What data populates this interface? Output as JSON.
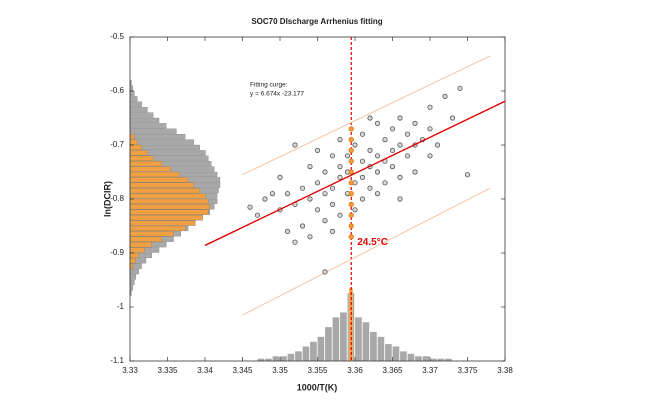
{
  "chart_data": {
    "type": "scatter",
    "title": "SOC70 DIscharge Arrhenius fitting",
    "xlabel": "1000/T(K)",
    "ylabel": "ln(DCIR)",
    "annotations": [
      "Fitting curge:",
      "y = 6.674x -23.177"
    ],
    "marker_label": "24.5°C",
    "xlim": [
      3.33,
      3.38
    ],
    "ylim": [
      -1.1,
      -0.5
    ],
    "xticks": [
      3.33,
      3.335,
      3.34,
      3.345,
      3.35,
      3.355,
      3.36,
      3.365,
      3.37,
      3.375,
      3.38
    ],
    "yticks": [
      -1.1,
      -1,
      -0.9,
      -0.8,
      -0.7,
      -0.6,
      -0.5
    ],
    "vline": {
      "x": 3.3595,
      "color": "#e00000"
    },
    "series": [
      {
        "type": "line",
        "color": "#f5c4a4",
        "x": [
          3.345,
          3.378
        ],
        "values": [
          -0.755,
          -0.535
        ]
      },
      {
        "type": "line",
        "color": "#f5c4a4",
        "x": [
          3.345,
          3.378
        ],
        "values": [
          -1.015,
          -0.78
        ]
      },
      {
        "type": "scatter",
        "color": "#808080",
        "x": [
          3.346,
          3.347,
          3.348,
          3.349,
          3.35,
          3.35,
          3.351,
          3.351,
          3.352,
          3.352,
          3.353,
          3.353,
          3.354,
          3.354,
          3.354,
          3.355,
          3.355,
          3.355,
          3.356,
          3.356,
          3.356,
          3.357,
          3.357,
          3.357,
          3.357,
          3.358,
          3.358,
          3.358,
          3.358,
          3.359,
          3.359,
          3.359,
          3.36,
          3.36,
          3.36,
          3.361,
          3.361,
          3.361,
          3.361,
          3.362,
          3.362,
          3.362,
          3.363,
          3.363,
          3.363,
          3.363,
          3.364,
          3.364,
          3.364,
          3.365,
          3.365,
          3.365,
          3.366,
          3.366,
          3.366,
          3.367,
          3.367,
          3.368,
          3.368,
          3.368,
          3.369,
          3.37,
          3.37,
          3.371,
          3.372,
          3.373,
          3.374,
          3.375,
          3.356,
          3.352,
          3.37,
          3.362,
          3.366
        ],
        "values": [
          -0.815,
          -0.83,
          -0.8,
          -0.79,
          -0.82,
          -0.76,
          -0.86,
          -0.79,
          -0.88,
          -0.81,
          -0.78,
          -0.85,
          -0.8,
          -0.74,
          -0.87,
          -0.77,
          -0.82,
          -0.71,
          -0.79,
          -0.84,
          -0.75,
          -0.72,
          -0.78,
          -0.86,
          -0.81,
          -0.74,
          -0.76,
          -0.83,
          -0.69,
          -0.72,
          -0.79,
          -0.75,
          -0.7,
          -0.77,
          -0.82,
          -0.73,
          -0.68,
          -0.76,
          -0.8,
          -0.71,
          -0.74,
          -0.78,
          -0.66,
          -0.72,
          -0.75,
          -0.79,
          -0.69,
          -0.73,
          -0.77,
          -0.67,
          -0.71,
          -0.74,
          -0.65,
          -0.7,
          -0.76,
          -0.68,
          -0.72,
          -0.66,
          -0.7,
          -0.75,
          -0.69,
          -0.72,
          -0.67,
          -0.7,
          -0.61,
          -0.65,
          -0.595,
          -0.755,
          -0.935,
          -0.7,
          -0.63,
          -0.65,
          -0.8
        ]
      },
      {
        "type": "scatter",
        "color": "#f0a040",
        "x": [
          3.3595,
          3.3595,
          3.3595,
          3.3595,
          3.3595,
          3.3595,
          3.3595,
          3.3595,
          3.3595,
          3.3595,
          3.3595
        ],
        "values": [
          -0.67,
          -0.69,
          -0.71,
          -0.73,
          -0.75,
          -0.77,
          -0.79,
          -0.81,
          -0.83,
          -0.85,
          -0.87
        ]
      },
      {
        "type": "line",
        "color": "#e00000",
        "x": [
          3.34,
          3.38
        ],
        "values": [
          -0.886,
          -0.619
        ]
      }
    ],
    "x_hist": [
      {
        "color": "#a8a8a8",
        "bins": [
          3.347,
          3.348,
          3.349,
          3.35,
          3.351,
          3.352,
          3.353,
          3.354,
          3.355,
          3.356,
          3.357,
          3.358,
          3.359,
          3.36,
          3.361,
          3.362,
          3.363,
          3.364,
          3.365,
          3.366,
          3.367,
          3.368,
          3.369,
          3.37,
          3.371,
          3.372,
          3.373
        ],
        "counts": [
          1,
          1,
          2,
          2,
          3,
          4,
          6,
          8,
          10,
          14,
          18,
          20,
          28,
          18,
          16,
          12,
          10,
          7,
          6,
          4,
          3,
          2,
          2,
          1,
          1,
          1
        ]
      },
      {
        "color": "#f0a040",
        "bins": [
          3.3592,
          3.3598
        ],
        "counts": [
          30
        ]
      }
    ],
    "y_hist": [
      {
        "color": "#a8a8a8",
        "bins": [
          -0.98,
          -0.97,
          -0.96,
          -0.95,
          -0.94,
          -0.93,
          -0.92,
          -0.91,
          -0.9,
          -0.89,
          -0.88,
          -0.87,
          -0.86,
          -0.85,
          -0.84,
          -0.83,
          -0.82,
          -0.81,
          -0.8,
          -0.79,
          -0.78,
          -0.77,
          -0.76,
          -0.75,
          -0.74,
          -0.73,
          -0.72,
          -0.71,
          -0.7,
          -0.69,
          -0.68,
          -0.67,
          -0.66,
          -0.65,
          -0.64,
          -0.63,
          -0.62,
          -0.61,
          -0.6,
          -0.59,
          -0.58
        ],
        "counts": [
          1,
          2,
          3,
          4,
          6,
          8,
          11,
          15,
          20,
          25,
          30,
          35,
          40,
          45,
          50,
          55,
          58,
          60,
          60,
          61,
          62,
          62,
          60,
          58,
          56,
          54,
          52,
          48,
          44,
          38,
          32,
          25,
          20,
          16,
          12,
          8,
          5,
          3,
          2,
          1
        ]
      },
      {
        "color": "#f0a040",
        "bins": [
          -0.93,
          -0.92,
          -0.91,
          -0.9,
          -0.89,
          -0.88,
          -0.87,
          -0.86,
          -0.85,
          -0.84,
          -0.83,
          -0.82,
          -0.81,
          -0.8,
          -0.79,
          -0.78,
          -0.77,
          -0.76,
          -0.75,
          -0.74,
          -0.73,
          -0.72,
          -0.71,
          -0.7,
          -0.69,
          -0.68
        ],
        "counts": [
          2,
          4,
          6,
          10,
          15,
          22,
          30,
          38,
          45,
          50,
          54,
          55,
          54,
          52,
          48,
          44,
          40,
          34,
          28,
          22,
          16,
          12,
          8,
          5,
          3
        ]
      }
    ]
  }
}
